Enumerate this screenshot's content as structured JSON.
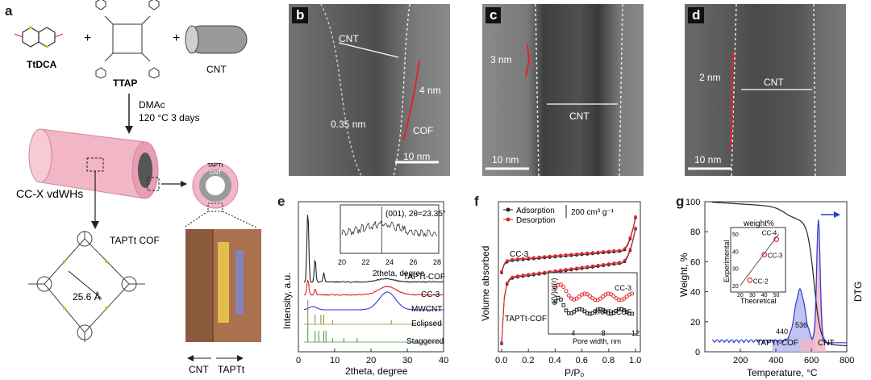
{
  "panels": {
    "a": {
      "letter": "a",
      "reactants": [
        "TtDCA",
        "TTAP",
        "CNT"
      ],
      "plus": "+",
      "solvent": "DMAc",
      "conditions": "120 °C 3 days",
      "product": "CC-X vdWHs",
      "cross_section_outer": "TAPTt",
      "cross_section_inner": "CNT",
      "cof": "TAPTt COF",
      "pore": "25.6 Å",
      "stack_left": "CNT",
      "stack_right": "TAPTt"
    },
    "b": {
      "letter": "b",
      "cnt": "CNT",
      "shell": "4 nm",
      "spacing": "0.35 nm",
      "cof": "COF",
      "scale": "10 nm"
    },
    "c": {
      "letter": "c",
      "shell": "3 nm",
      "cnt": "CNT",
      "scale": "10 nm"
    },
    "d": {
      "letter": "d",
      "shell": "2 nm",
      "cnt": "CNT",
      "scale": "10 nm"
    }
  },
  "colors": {
    "red": "#e0262b",
    "blue": "#2a3bd6",
    "green": "#3a9a3a",
    "olive": "#8a8a3a",
    "pink": "#f2b6c6",
    "lavender": "#b7b8ee"
  },
  "chart_data": [
    {
      "id": "e",
      "letter": "e",
      "type": "line",
      "xlabel": "2theta, degree",
      "ylabel": "Intensity, a.u.",
      "xlim": [
        0,
        40
      ],
      "xticks": [
        10,
        20,
        30,
        40
      ],
      "series": [
        {
          "name": "TAPTt-COF",
          "color": "#222222"
        },
        {
          "name": "CC-3",
          "color": "#e0262b"
        },
        {
          "name": "MWCNT",
          "color": "#2a3bd6"
        },
        {
          "name": "Eclipsed",
          "color": "#8a8a3a"
        },
        {
          "name": "Staggered",
          "color": "#3a9a3a"
        }
      ],
      "inset": {
        "annotation": "(001), 2θ=23.35°",
        "xlabel": "2theta, degree",
        "xlim": [
          20,
          28
        ],
        "xticks": [
          20,
          22,
          24,
          26,
          28
        ]
      }
    },
    {
      "id": "f",
      "letter": "f",
      "type": "line",
      "xlabel": "P/P₀",
      "ylabel": "Volume absorbed",
      "xlim": [
        0,
        1
      ],
      "xticks": [
        "0.0",
        "0.2",
        "0.4",
        "0.6",
        "0.8",
        "1.0"
      ],
      "legend": [
        "Adsorption",
        "Desorption"
      ],
      "scale_bar": "200 cm³ g⁻¹",
      "series": [
        {
          "name": "CC-3"
        },
        {
          "name": "TAPTt-COF"
        }
      ],
      "inset": {
        "ylabel": "d(V)/d(r)",
        "xlabel": "Pore width, nm",
        "xticks": [
          4,
          8,
          12
        ],
        "series": [
          "CC-3",
          "TAPTt-COF"
        ]
      }
    },
    {
      "id": "g",
      "letter": "g",
      "type": "line",
      "xlabel": "Temperature, °C",
      "ylabel": "Weight, %",
      "y2label": "DTG",
      "xlim": [
        0,
        800
      ],
      "xticks": [
        200,
        400,
        600,
        800
      ],
      "ylim": [
        0,
        100
      ],
      "yticks": [
        0,
        20,
        40,
        60,
        80,
        100
      ],
      "peak_labels": [
        "440",
        "536",
        "TAPTt-COF",
        "CNT"
      ],
      "inset": {
        "title": "weight%",
        "xlabel": "Theoretical",
        "ylabel": "Experimental",
        "xlim": [
          20,
          55
        ],
        "xticks": [
          20,
          30,
          40,
          50
        ],
        "yticks": [
          20,
          30,
          40,
          50
        ],
        "points": [
          {
            "name": "CC-4",
            "x": 50,
            "y": 47
          },
          {
            "name": "CC-3",
            "x": 40,
            "y": 38
          },
          {
            "name": "CC-2",
            "x": 28,
            "y": 23
          }
        ]
      }
    }
  ]
}
